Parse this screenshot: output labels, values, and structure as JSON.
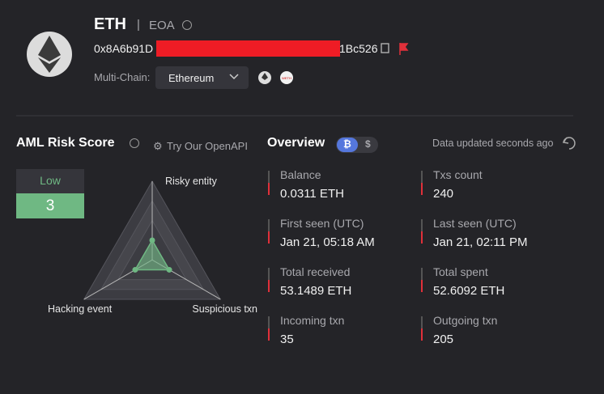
{
  "header": {
    "title": "ETH",
    "account_type": "EOA",
    "address_start": "0x8A6b91D",
    "address_end": "1Bc526",
    "multichain_label": "Multi-Chain:",
    "chain_select": "Ethereum",
    "weth_badge": "WETH"
  },
  "aml": {
    "title": "AML Risk Score",
    "api_link": "Try Our OpenAPI",
    "risk_level": "Low",
    "risk_score": 3,
    "radar": {
      "axes": [
        "Risky entity",
        "Suspicious txn",
        "Hacking event"
      ],
      "values": [
        1,
        1,
        1
      ],
      "max": 4
    }
  },
  "overview": {
    "title": "Overview",
    "updated": "Data updated seconds ago",
    "currency_btc": "₿",
    "currency_usd": "$",
    "items": [
      {
        "label": "Balance",
        "value": "0.0311 ETH"
      },
      {
        "label": "Txs count",
        "value": 240
      },
      {
        "label": "First seen (UTC)",
        "value": "Jan 21, 05:18 AM"
      },
      {
        "label": "Last seen (UTC)",
        "value": "Jan 21, 02:11 PM"
      },
      {
        "label": "Total received",
        "value": "53.1489 ETH"
      },
      {
        "label": "Total spent",
        "value": "52.6092 ETH"
      },
      {
        "label": "Incoming txn",
        "value": 35
      },
      {
        "label": "Outgoing txn",
        "value": 205
      }
    ]
  }
}
